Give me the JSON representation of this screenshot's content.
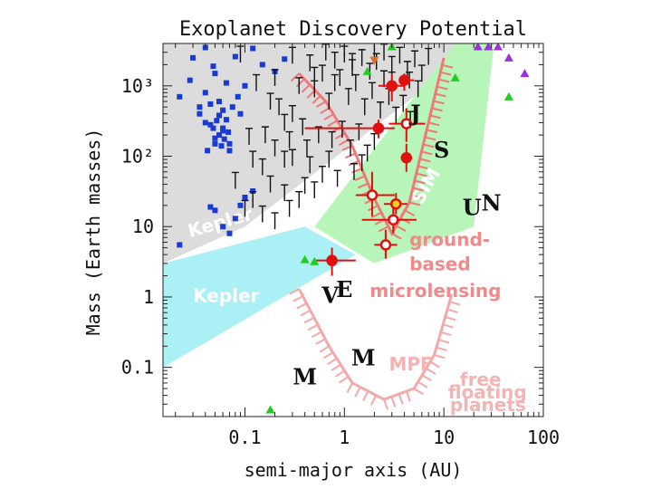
{
  "chart_data": {
    "type": "scatter",
    "title": "Exoplanet Discovery Potential",
    "xlabel": "semi-major axis (AU)",
    "ylabel": "Mass (Earth masses)",
    "xscale": "log",
    "yscale": "log",
    "xlim": [
      0.015,
      100
    ],
    "ylim": [
      0.02,
      4000
    ],
    "x_ticks": [
      {
        "value": 0.1,
        "label": "0.1"
      },
      {
        "value": 1,
        "label": "1"
      },
      {
        "value": 10,
        "label": "10"
      },
      {
        "value": 100,
        "label": "100"
      }
    ],
    "y_ticks": [
      {
        "value": 0.1,
        "label": "0.1"
      },
      {
        "value": 1,
        "label": "1"
      },
      {
        "value": 10,
        "label": "10"
      },
      {
        "value": 100,
        "label": "10²"
      },
      {
        "value": 1000,
        "label": "10³"
      }
    ],
    "regions": [
      {
        "name": "ground-based-transit",
        "color": "#dcdcdc",
        "polygon": [
          [
            0.015,
            4000
          ],
          [
            25,
            4000
          ],
          [
            0.1,
            10
          ],
          [
            0.015,
            3
          ]
        ]
      },
      {
        "name": "kepler",
        "color": "#aaf0f4",
        "polygon": [
          [
            0.015,
            3
          ],
          [
            0.4,
            10
          ],
          [
            1.3,
            4
          ],
          [
            0.015,
            0.1
          ]
        ]
      },
      {
        "name": "sim",
        "color": "#b8f5b8",
        "polygon": [
          [
            32,
            4000
          ],
          [
            13,
            4000
          ],
          [
            0.5,
            10
          ],
          [
            2,
            3
          ],
          [
            20,
            10
          ]
        ]
      }
    ],
    "region_labels": [
      {
        "text": "Kepler",
        "x": 0.028,
        "y": 7,
        "color": "#ffffff",
        "rotate": -16
      },
      {
        "text": "Kepler",
        "x": 0.03,
        "y": 0.85,
        "color": "#ffffff",
        "rotate": 0
      },
      {
        "text": "SIM",
        "x": 6,
        "y": 20,
        "color": "#ffffff",
        "rotate": -60
      },
      {
        "text": "ground-",
        "x": 4.5,
        "y": 5.3,
        "color": "#f08a8a",
        "rotate": 0
      },
      {
        "text": "based",
        "x": 4.5,
        "y": 2.4,
        "color": "#f08a8a",
        "rotate": 0
      },
      {
        "text": "microlensing",
        "x": 1.8,
        "y": 1,
        "color": "#f08a8a",
        "rotate": 0
      },
      {
        "text": "MPF",
        "x": 2.8,
        "y": 0.09,
        "color": "#f4b4b4",
        "rotate": 0
      },
      {
        "text": "free",
        "x": 14.5,
        "y": 0.055,
        "color": "#f4b4b4",
        "rotate": 0
      },
      {
        "text": "floating",
        "x": 11,
        "y": 0.036,
        "color": "#f4b4b4",
        "rotate": 0
      },
      {
        "text": "planets",
        "x": 11.5,
        "y": 0.024,
        "color": "#f4b4b4",
        "rotate": 0
      }
    ],
    "solar_system": [
      {
        "label": "M",
        "x": 0.4,
        "y": 0.057
      },
      {
        "label": "V",
        "x": 0.72,
        "y": 0.82
      },
      {
        "label": "E",
        "x": 1.0,
        "y": 1.0
      },
      {
        "label": "M",
        "x": 1.55,
        "y": 0.107
      },
      {
        "label": "J",
        "x": 5.2,
        "y": 318
      },
      {
        "label": "S",
        "x": 9.5,
        "y": 95
      },
      {
        "label": "U",
        "x": 19.2,
        "y": 14.5
      },
      {
        "label": "N",
        "x": 30,
        "y": 17
      }
    ],
    "series": [
      {
        "name": "transit-planets",
        "marker": "square",
        "color": "#1a3ad4",
        "points": [
          [
            0.022,
            5.5
          ],
          [
            0.022,
            700
          ],
          [
            0.028,
            1200
          ],
          [
            0.035,
            500
          ],
          [
            0.035,
            400
          ],
          [
            0.04,
            800
          ],
          [
            0.04,
            300
          ],
          [
            0.042,
            120
          ],
          [
            0.045,
            550
          ],
          [
            0.048,
            1900
          ],
          [
            0.048,
            250
          ],
          [
            0.05,
            180
          ],
          [
            0.05,
            150
          ],
          [
            0.052,
            320
          ],
          [
            0.055,
            600
          ],
          [
            0.055,
            200
          ],
          [
            0.058,
            140
          ],
          [
            0.06,
            450
          ],
          [
            0.06,
            250
          ],
          [
            0.062,
            175
          ],
          [
            0.065,
            1100
          ],
          [
            0.065,
            330
          ],
          [
            0.068,
            220
          ],
          [
            0.07,
            150
          ],
          [
            0.075,
            500
          ],
          [
            0.08,
            2600
          ],
          [
            0.085,
            700
          ],
          [
            0.09,
            400
          ],
          [
            0.1,
            1000
          ],
          [
            0.12,
            3400
          ],
          [
            0.15,
            2000
          ],
          [
            0.2,
            1600
          ],
          [
            0.25,
            2400
          ],
          [
            0.04,
            3500
          ],
          [
            0.03,
            2500
          ],
          [
            0.05,
            1500
          ],
          [
            0.055,
            380
          ],
          [
            0.045,
            280
          ],
          [
            0.06,
            230
          ],
          [
            0.07,
            120
          ],
          [
            0.06,
            10
          ],
          [
            0.07,
            8
          ],
          [
            0.08,
            13
          ],
          [
            0.05,
            17
          ],
          [
            0.045,
            19
          ],
          [
            0.09,
            20
          ],
          [
            0.1,
            26
          ],
          [
            0.12,
            32
          ]
        ]
      },
      {
        "name": "rv-planets",
        "marker": "bar",
        "color": "#111111",
        "points": [
          [
            0.3,
            2700
          ],
          [
            0.45,
            2100
          ],
          [
            0.65,
            3000
          ],
          [
            0.8,
            2300
          ],
          [
            1.0,
            2800
          ],
          [
            1.2,
            1800
          ],
          [
            1.5,
            2500
          ],
          [
            1.8,
            1600
          ],
          [
            2.1,
            2200
          ],
          [
            2.5,
            3000
          ],
          [
            3.0,
            2000
          ],
          [
            3.6,
            2700
          ],
          [
            4.3,
            1700
          ],
          [
            5.1,
            2400
          ],
          [
            6.0,
            1500
          ],
          [
            0.35,
            1000
          ],
          [
            0.5,
            900
          ],
          [
            0.7,
            600
          ],
          [
            0.9,
            1300
          ],
          [
            1.1,
            700
          ],
          [
            1.3,
            1100
          ],
          [
            1.6,
            500
          ],
          [
            1.9,
            850
          ],
          [
            2.3,
            450
          ],
          [
            2.8,
            700
          ],
          [
            3.3,
            380
          ],
          [
            3.9,
            560
          ],
          [
            4.6,
            330
          ],
          [
            0.25,
            300
          ],
          [
            0.38,
            260
          ],
          [
            0.55,
            200
          ],
          [
            0.75,
            170
          ],
          [
            0.95,
            240
          ],
          [
            1.15,
            130
          ],
          [
            1.4,
            220
          ],
          [
            1.7,
            110
          ],
          [
            2.0,
            160
          ],
          [
            0.2,
            130
          ],
          [
            0.3,
            95
          ],
          [
            0.45,
            75
          ],
          [
            0.6,
            55
          ],
          [
            0.85,
            48
          ],
          [
            1.25,
            60
          ],
          [
            0.15,
            70
          ],
          [
            0.18,
            40
          ],
          [
            0.25,
            30
          ],
          [
            0.35,
            24
          ],
          [
            0.5,
            33
          ],
          [
            0.12,
            24
          ],
          [
            0.15,
            15
          ],
          [
            0.2,
            12
          ],
          [
            0.28,
            18
          ],
          [
            0.4,
            38
          ],
          [
            0.1,
            18
          ],
          [
            0.08,
            45
          ],
          [
            0.12,
            90
          ],
          [
            0.16,
            200
          ],
          [
            0.22,
            500
          ],
          [
            0.2,
            1300
          ],
          [
            0.3,
            400
          ],
          [
            0.6,
            1500
          ],
          [
            1.0,
            3500
          ],
          [
            2.0,
            3200
          ],
          [
            3.0,
            1200
          ],
          [
            7.0,
            2600
          ],
          [
            0.42,
            130
          ],
          [
            0.28,
            170
          ],
          [
            0.18,
            600
          ],
          [
            0.13,
            1100
          ],
          [
            0.09,
            2800
          ],
          [
            0.11,
            190
          ],
          [
            0.25,
            90
          ],
          [
            0.7,
            90
          ],
          [
            1.5,
            80
          ],
          [
            5.5,
            900
          ],
          [
            4.5,
            1200
          ],
          [
            2.5,
            1250
          ],
          [
            1.2,
            2200
          ],
          [
            0.8,
            1100
          ],
          [
            0.5,
            1400
          ]
        ]
      },
      {
        "name": "microlensing-planets",
        "marker": "circle-errorbar",
        "color": "#e01010",
        "points": [
          {
            "x": 0.75,
            "y": 3.3,
            "filled": true,
            "xerr": [
              0.5,
              1.3
            ],
            "yerr": [
              2,
              5
            ]
          },
          {
            "x": 2.6,
            "y": 5.5,
            "filled": false,
            "xerr": [
              2.0,
              3.4
            ],
            "yerr": [
              3.5,
              9
            ]
          },
          {
            "x": 3.1,
            "y": 12.5,
            "filled": false,
            "xerr": [
              1.5,
              5.3
            ],
            "yerr": [
              8,
              20
            ]
          },
          {
            "x": 3.3,
            "y": 21,
            "filled": false,
            "hollow_color": "#f0d020",
            "xerr": [
              2.5,
              4.3
            ],
            "yerr": [
              15,
              30
            ]
          },
          {
            "x": 1.9,
            "y": 28,
            "filled": false,
            "xerr": [
              1.3,
              3.2
            ],
            "yerr": [
              14,
              60
            ]
          },
          {
            "x": 4.2,
            "y": 95,
            "filled": true,
            "xerr": [
              3.7,
              4.8
            ],
            "yerr": [
              60,
              150
            ]
          },
          {
            "x": 4.2,
            "y": 290,
            "filled": false,
            "xerr": [
              2.8,
              6.5
            ],
            "yerr": [
              160,
              480
            ]
          },
          {
            "x": 2.2,
            "y": 250,
            "filled": true,
            "xerr": [
              0.4,
              3.2
            ],
            "yerr": [
              180,
              330
            ]
          },
          {
            "x": 3.0,
            "y": 1000,
            "filled": true,
            "xerr": [
              2.2,
              4.0
            ],
            "yerr": [
              600,
              1500
            ]
          },
          {
            "x": 4.0,
            "y": 1200,
            "filled": true,
            "xerr": [
              3.6,
              5.0
            ],
            "yerr": [
              850,
              1500
            ]
          }
        ]
      },
      {
        "name": "direct-imaging",
        "marker": "triangle",
        "color": "#9b30e0",
        "points": [
          [
            22,
            3600
          ],
          [
            28,
            3600
          ],
          [
            35,
            3600
          ],
          [
            45,
            2500
          ],
          [
            65,
            1500
          ]
        ]
      },
      {
        "name": "timing-planets",
        "marker": "triangle",
        "color": "#22cc22",
        "points": [
          [
            0.4,
            3.4
          ],
          [
            0.5,
            3.2
          ],
          [
            0.18,
            0.025
          ],
          [
            1.7,
            1600
          ],
          [
            3.0,
            3600
          ],
          [
            13,
            1300
          ],
          [
            45,
            700
          ]
        ]
      },
      {
        "name": "other-planets",
        "marker": "triangle-down",
        "color": "#e07020",
        "points": [
          [
            2.0,
            2300
          ]
        ]
      }
    ],
    "curves": [
      {
        "name": "ground-microlensing-sensitivity",
        "color": "#f07878",
        "points": [
          [
            0.35,
            1500
          ],
          [
            0.65,
            600
          ],
          [
            1.2,
            140
          ],
          [
            2.0,
            25
          ],
          [
            3.0,
            8
          ],
          [
            4.5,
            22
          ],
          [
            7.0,
            300
          ],
          [
            10,
            2500
          ]
        ]
      },
      {
        "name": "mpf-sensitivity",
        "color": "#f4a8a8",
        "points": [
          [
            0.35,
            1.3
          ],
          [
            0.7,
            0.2
          ],
          [
            1.2,
            0.06
          ],
          [
            2.5,
            0.035
          ],
          [
            5.0,
            0.05
          ],
          [
            8.0,
            0.15
          ],
          [
            12,
            1.1
          ]
        ]
      }
    ]
  }
}
